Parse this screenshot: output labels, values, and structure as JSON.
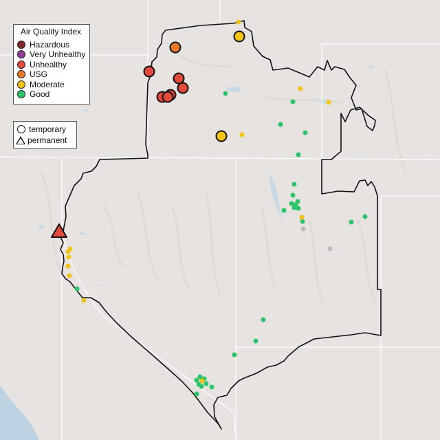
{
  "legend": {
    "title": "Air Quality Index",
    "categories": [
      {
        "label": "Hazardous",
        "color": "#7e2a2a"
      },
      {
        "label": "Very Unhealthy",
        "color": "#8f3f97"
      },
      {
        "label": "Unhealthy",
        "color": "#e34a3b"
      },
      {
        "label": "USG",
        "color": "#e8792a"
      },
      {
        "label": "Moderate",
        "color": "#f2c418"
      },
      {
        "label": "Good",
        "color": "#2cc56a"
      }
    ]
  },
  "type_legend": {
    "temporary": "temporary",
    "permanent": "permanent"
  },
  "colors": {
    "land": "#e6e3e1",
    "water": "#c7d9e4",
    "ocean": "#b9cfe0",
    "border": "#111111",
    "state_line": "#ffffff",
    "no_data": "#b9b9b9"
  }
}
